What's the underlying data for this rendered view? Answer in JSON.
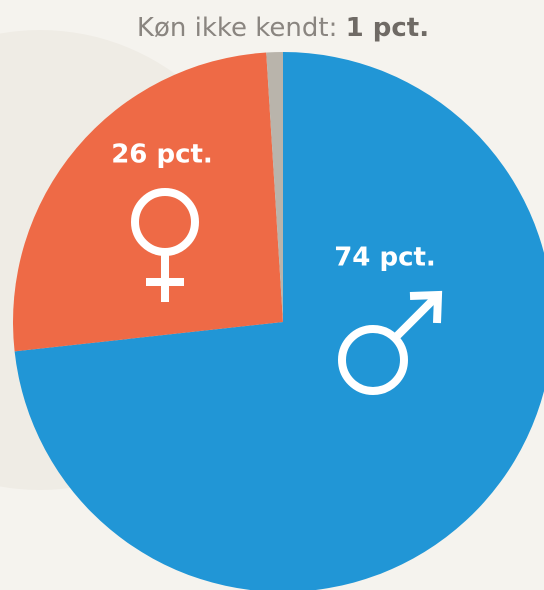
{
  "chart_data": {
    "type": "pie",
    "categories": [
      null,
      null,
      "Køn ikke kendt:"
    ],
    "values": [
      74,
      26,
      1
    ],
    "value_labels": [
      "74 pct.",
      "26 pct.",
      "1 pct."
    ],
    "colors": [
      "#2196d6",
      "#ee6a46",
      "#b9b4ab"
    ]
  }
}
